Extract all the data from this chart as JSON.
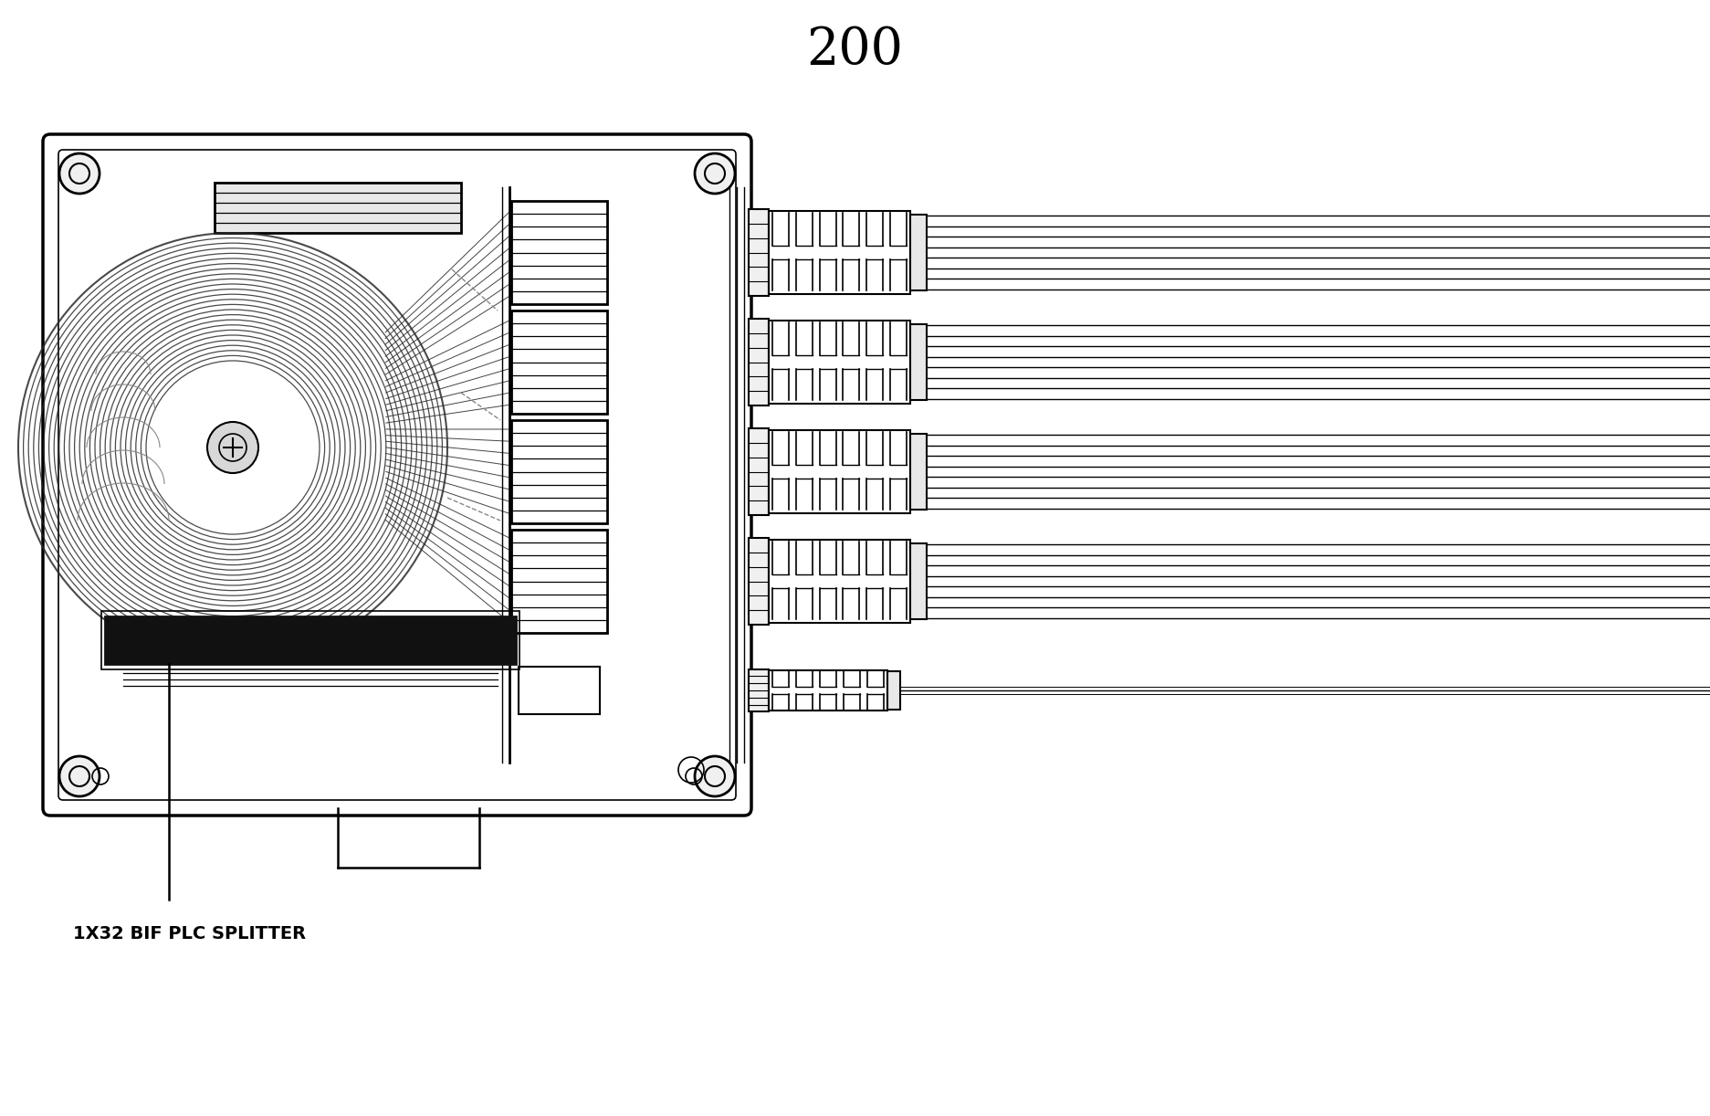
{
  "title_number": "200",
  "title_fontsize": 40,
  "background_color": "#ffffff",
  "line_color": "#000000",
  "label_text": "1X32 BIF PLC SPLITTER",
  "label_fontsize": 14,
  "fig_width": 18.73,
  "fig_height": 12.22
}
